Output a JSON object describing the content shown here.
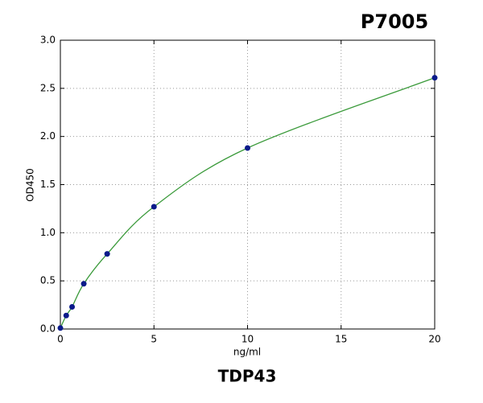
{
  "chart_data": {
    "type": "line",
    "title": "P7005",
    "caption": "TDP43",
    "x_label": "ng/ml",
    "y_label": "OD450",
    "x": [
      0,
      0.3125,
      0.625,
      1.25,
      2.5,
      5,
      10,
      20
    ],
    "series": [
      {
        "color": "#3a9a3a",
        "marker_color": "#0a1a8a",
        "values": [
          0.01,
          0.14,
          0.23,
          0.47,
          0.78,
          1.27,
          1.88,
          2.61
        ]
      }
    ],
    "xlim": [
      0,
      20
    ],
    "xticks": [
      0,
      5,
      10,
      15,
      20
    ],
    "ylim": [
      0,
      3
    ],
    "yticks": [
      {
        "value": 0,
        "label": "0.0"
      },
      0.5,
      {
        "value": 1,
        "label": "1.0"
      },
      1.5,
      {
        "value": 2,
        "label": "2.0"
      },
      2.5,
      {
        "value": 3,
        "label": "3.0"
      }
    ],
    "grid": true
  }
}
